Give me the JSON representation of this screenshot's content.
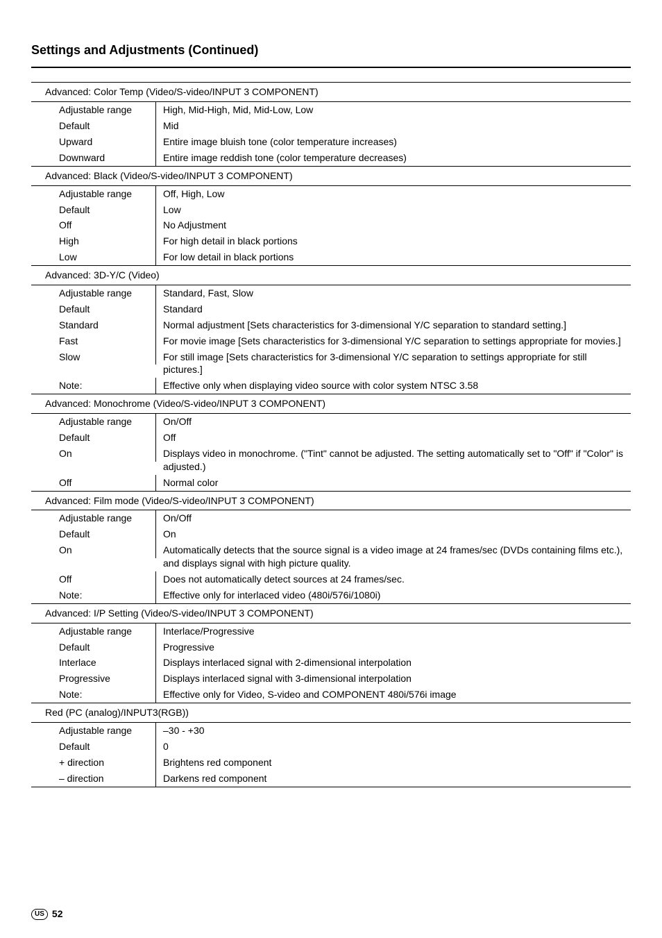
{
  "page": {
    "title": "Settings and Adjustments (Continued)",
    "region_code": "US",
    "page_number": "52"
  },
  "sections": [
    {
      "header": "Advanced: Color Temp (Video/S-video/INPUT 3 COMPONENT)",
      "rows": [
        {
          "label": "Adjustable range",
          "value": "High, Mid-High, Mid, Mid-Low, Low"
        },
        {
          "label": "Default",
          "value": "Mid"
        },
        {
          "label": "Upward",
          "value": "Entire image bluish tone (color temperature increases)"
        },
        {
          "label": "Downward",
          "value": "Entire image reddish tone (color temperature decreases)"
        }
      ]
    },
    {
      "header": "Advanced: Black (Video/S-video/INPUT 3 COMPONENT)",
      "rows": [
        {
          "label": "Adjustable range",
          "value": "Off, High, Low"
        },
        {
          "label": "Default",
          "value": "Low"
        },
        {
          "label": "Off",
          "value": "No Adjustment"
        },
        {
          "label": "High",
          "value": "For high detail in black portions"
        },
        {
          "label": "Low",
          "value": "For low detail in black portions"
        }
      ]
    },
    {
      "header": "Advanced: 3D-Y/C (Video)",
      "rows": [
        {
          "label": "Adjustable range",
          "value": "Standard, Fast, Slow"
        },
        {
          "label": "Default",
          "value": "Standard"
        },
        {
          "label": "Standard",
          "value": "Normal adjustment [Sets characteristics for 3-dimensional Y/C separation to standard setting.]"
        },
        {
          "label": "Fast",
          "value": "For movie image [Sets characteristics for 3-dimensional Y/C separation to settings appropriate for movies.]"
        },
        {
          "label": "Slow",
          "value": "For still image [Sets characteristics for 3-dimensional Y/C separation to settings appropriate for still pictures.]"
        },
        {
          "label": "Note:",
          "value": "Effective only when displaying video source with color system NTSC 3.58"
        }
      ]
    },
    {
      "header": "Advanced: Monochrome (Video/S-video/INPUT 3 COMPONENT)",
      "rows": [
        {
          "label": "Adjustable range",
          "value": "On/Off"
        },
        {
          "label": "Default",
          "value": "Off"
        },
        {
          "label": "On",
          "value": "Displays video in monochrome. (\"Tint\" cannot be adjusted. The setting automatically set to \"Off\" if \"Color\" is adjusted.)"
        },
        {
          "label": "Off",
          "value": "Normal color"
        }
      ]
    },
    {
      "header": "Advanced: Film mode (Video/S-video/INPUT 3 COMPONENT)",
      "rows": [
        {
          "label": "Adjustable range",
          "value": "On/Off"
        },
        {
          "label": "Default",
          "value": "On"
        },
        {
          "label": "On",
          "value": "Automatically detects that the source signal is a video image at 24 frames/sec (DVDs containing films etc.), and displays signal with high picture quality."
        },
        {
          "label": "Off",
          "value": "Does not automatically detect sources at 24 frames/sec."
        },
        {
          "label": "Note:",
          "value": "Effective only for interlaced video (480i/576i/1080i)"
        }
      ]
    },
    {
      "header": "Advanced: I/P Setting (Video/S-video/INPUT 3 COMPONENT)",
      "rows": [
        {
          "label": "Adjustable range",
          "value": "Interlace/Progressive"
        },
        {
          "label": "Default",
          "value": "Progressive"
        },
        {
          "label": "Interlace",
          "value": "Displays interlaced signal with 2-dimensional interpolation"
        },
        {
          "label": "Progressive",
          "value": "Displays interlaced signal with 3-dimensional interpolation"
        },
        {
          "label": "Note:",
          "value": "Effective only for Video, S-video and COMPONENT 480i/576i image"
        }
      ]
    },
    {
      "header": "Red (PC (analog)/INPUT3(RGB))",
      "rows": [
        {
          "label": "Adjustable range",
          "value": "–30 - +30"
        },
        {
          "label": "Default",
          "value": "0"
        },
        {
          "label": "+ direction",
          "value": "Brightens red component"
        },
        {
          "label": "– direction",
          "value": "Darkens red component"
        }
      ]
    }
  ]
}
